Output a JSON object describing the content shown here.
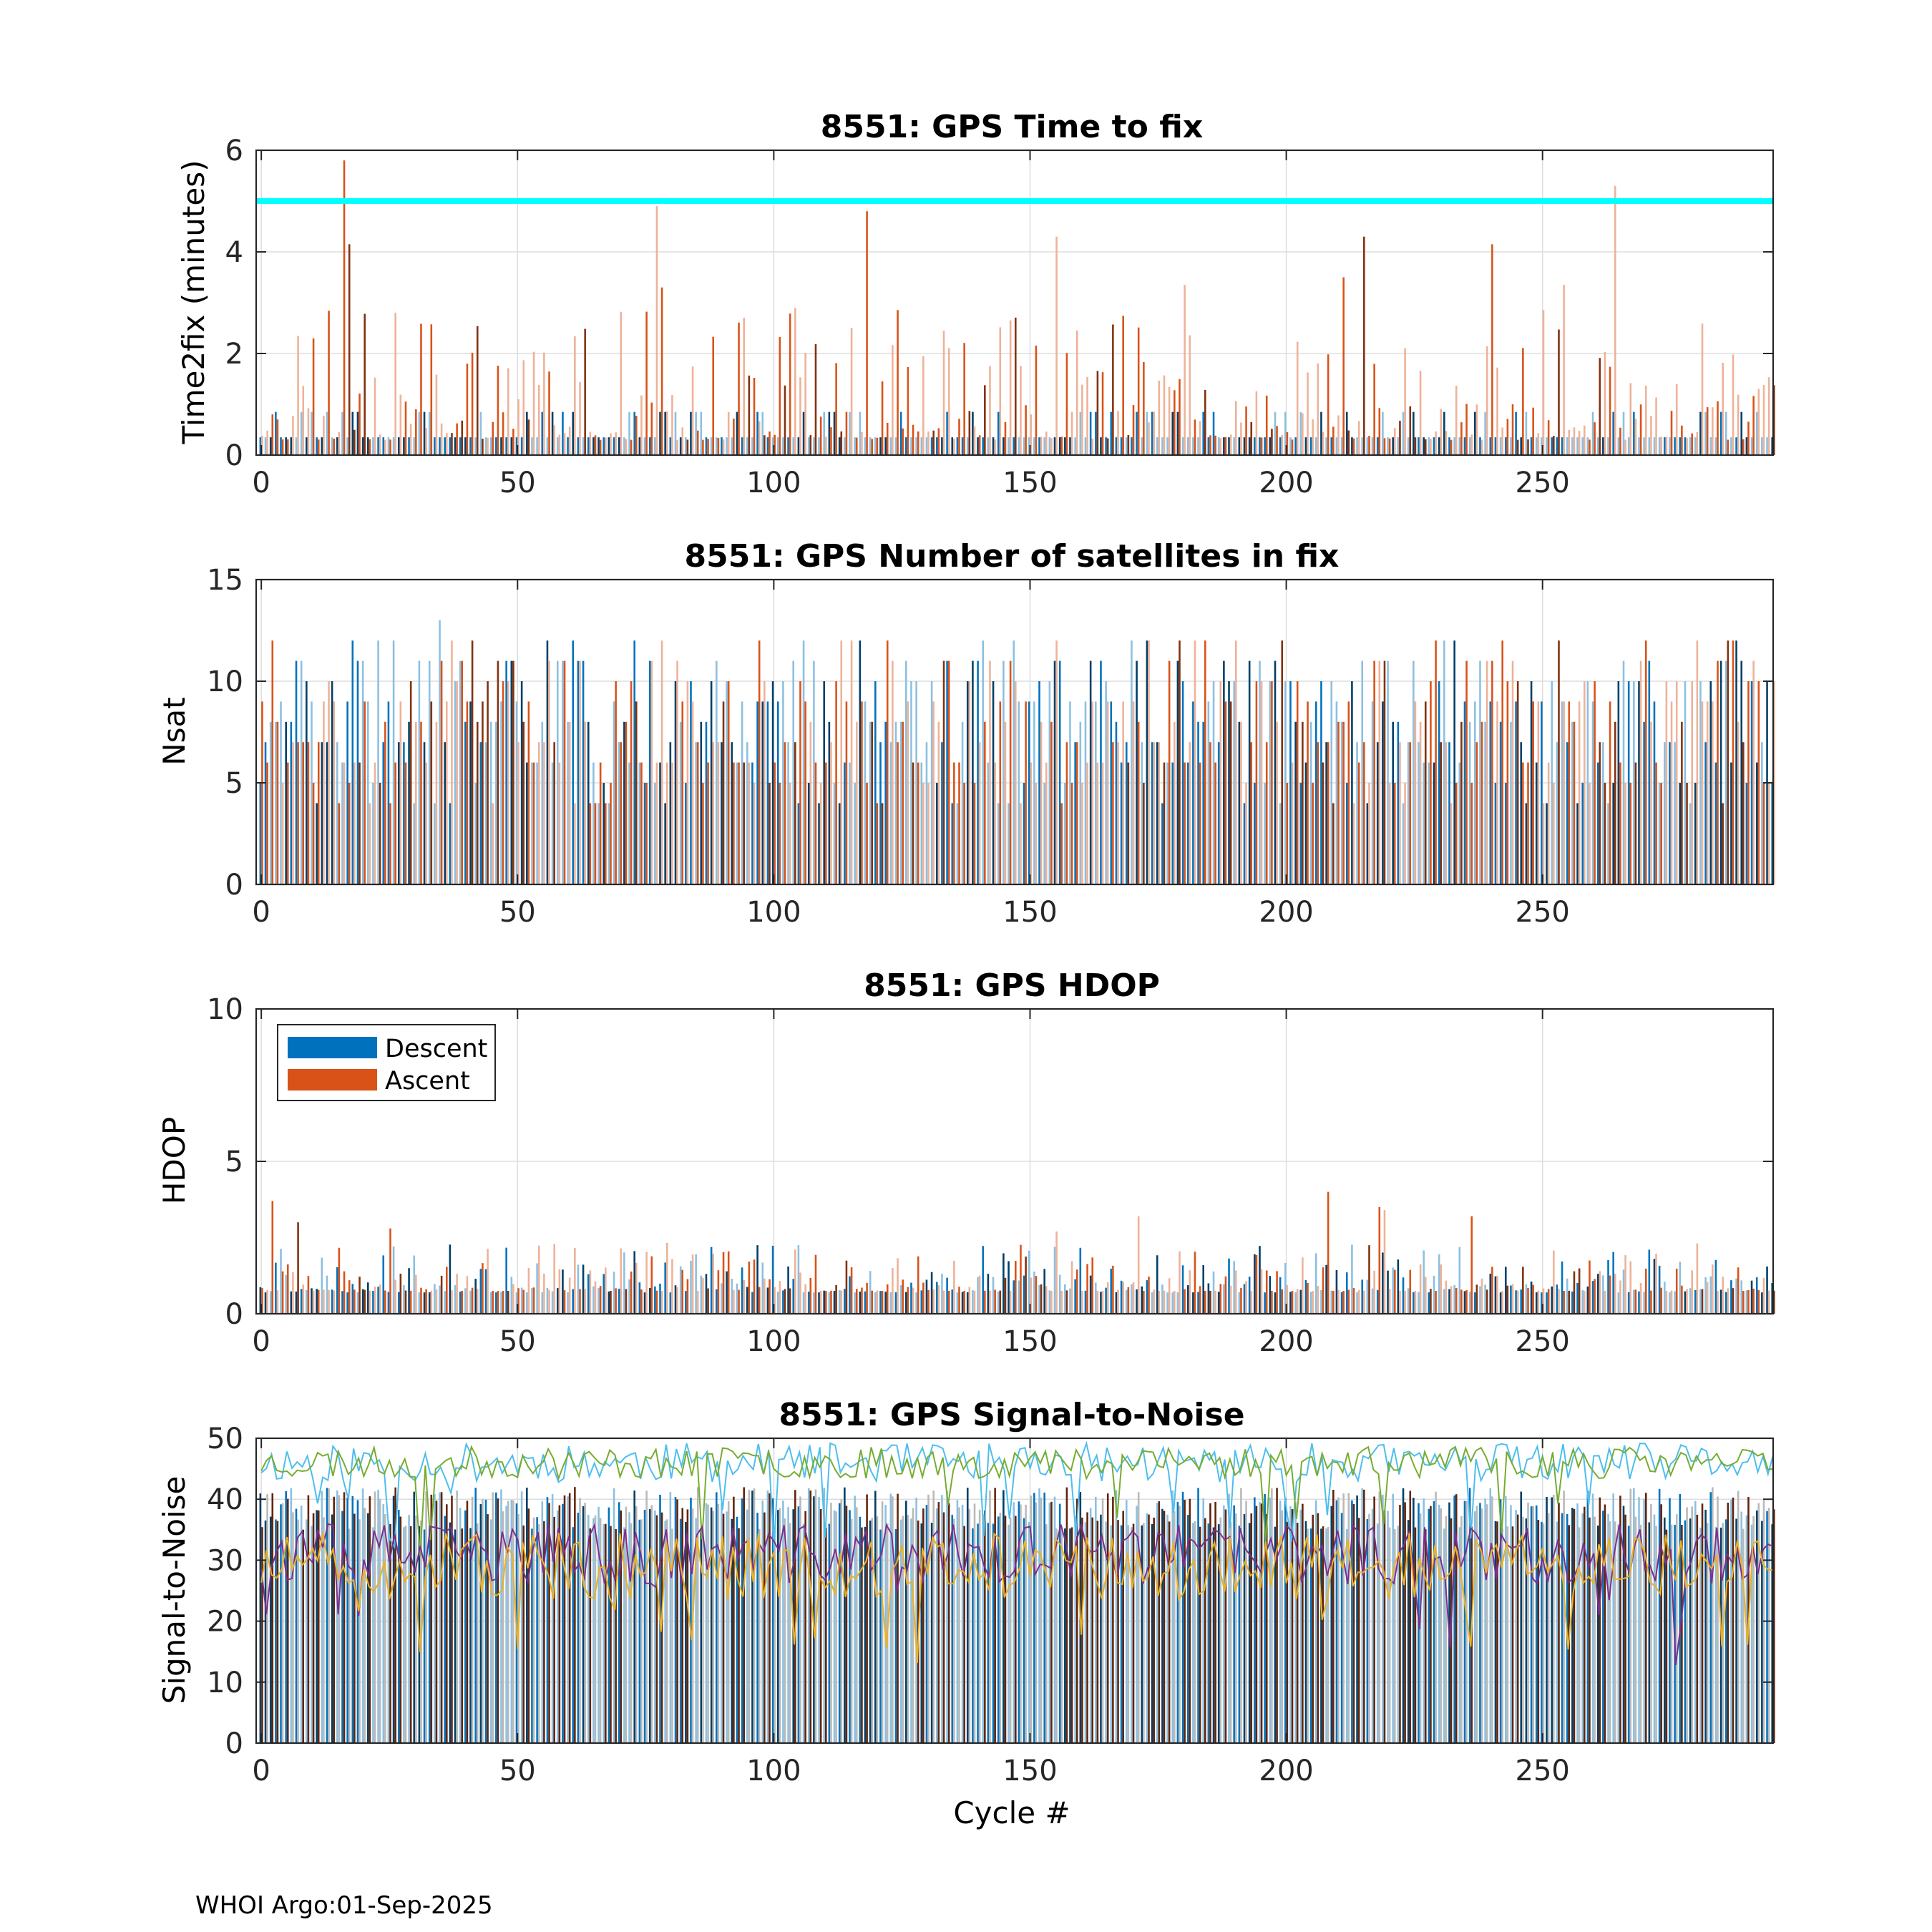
{
  "figure": {
    "footer": "WHOI Argo:01-Sep-2025"
  },
  "colors": {
    "descent": "#0072BD",
    "ascent": "#D95319",
    "threshold": "#00FFFF",
    "snr_lines": [
      "#4DBEEE",
      "#77AC30",
      "#7E2F8E",
      "#EDB120"
    ],
    "grid": "#DDDDDD"
  },
  "chart_data": [
    {
      "id": "time2fix",
      "type": "bar",
      "title": "8551: GPS Time to fix",
      "xlabel": "",
      "ylabel": "Time2fix (minutes)",
      "xlim": [
        -1,
        295
      ],
      "ylim": [
        0,
        6
      ],
      "xticks": [
        0,
        50,
        100,
        150,
        200,
        250
      ],
      "yticks": [
        0,
        2,
        4,
        6
      ],
      "grid": true,
      "reference_line": 5,
      "cycles": {
        "start": 0,
        "end": 295
      },
      "series": [
        {
          "name": "Descent",
          "note": "mostly ~0.35 min, occasionally ~0.85 min"
        },
        {
          "name": "Ascent",
          "note": "typically 0.3-2.5 min"
        }
      ],
      "ascent_peaks": [
        [
          16,
          5.8
        ],
        [
          17,
          4.15
        ],
        [
          77,
          4.9
        ],
        [
          78,
          3.3
        ],
        [
          118,
          4.8
        ],
        [
          155,
          4.3
        ],
        [
          215,
          4.3
        ],
        [
          240,
          4.15
        ],
        [
          264,
          5.3
        ],
        [
          180,
          3.35
        ],
        [
          254,
          3.35
        ],
        [
          211,
          3.5
        ]
      ]
    },
    {
      "id": "nsat",
      "type": "bar",
      "title": "8551: GPS Number of satellites in fix",
      "xlabel": "",
      "ylabel": "Nsat",
      "xlim": [
        -1,
        295
      ],
      "ylim": [
        0,
        15
      ],
      "xticks": [
        0,
        50,
        100,
        150,
        200,
        250
      ],
      "yticks": [
        0,
        5,
        10,
        15
      ],
      "grid": true,
      "series": [
        {
          "name": "Descent",
          "range": [
            4,
            13
          ]
        },
        {
          "name": "Ascent",
          "range": [
            4,
            12
          ]
        }
      ]
    },
    {
      "id": "hdop",
      "type": "bar",
      "title": "8551: GPS HDOP",
      "xlabel": "",
      "ylabel": "HDOP",
      "xlim": [
        -1,
        295
      ],
      "ylim": [
        0,
        10
      ],
      "xticks": [
        0,
        50,
        100,
        150,
        200,
        250
      ],
      "yticks": [
        0,
        5,
        10
      ],
      "grid": true,
      "legend": {
        "position": "top-left",
        "entries": [
          "Descent",
          "Ascent"
        ]
      },
      "series": [
        {
          "name": "Descent",
          "range": [
            0.7,
            2.3
          ]
        },
        {
          "name": "Ascent",
          "range": [
            0.7,
            4.0
          ]
        }
      ],
      "ascent_peaks": [
        [
          2,
          3.7
        ],
        [
          7,
          3.0
        ],
        [
          25,
          2.8
        ],
        [
          155,
          2.7
        ],
        [
          171,
          3.2
        ],
        [
          208,
          4.0
        ],
        [
          218,
          3.5
        ],
        [
          236,
          3.2
        ],
        [
          219,
          3.4
        ]
      ]
    },
    {
      "id": "snr",
      "type": "bar+line",
      "title": "8551: GPS Signal-to-Noise",
      "xlabel": "Cycle #",
      "ylabel": "Signal-to-Noise",
      "xlim": [
        -1,
        295
      ],
      "ylim": [
        0,
        50
      ],
      "xticks": [
        0,
        50,
        100,
        150,
        200,
        250
      ],
      "yticks": [
        0,
        10,
        20,
        30,
        40,
        50
      ],
      "grid": true,
      "series": [
        {
          "name": "SNR bars",
          "range": [
            35,
            42
          ]
        },
        {
          "name": "SNR line 1",
          "typical": 46
        },
        {
          "name": "SNR line 2",
          "typical": 46
        },
        {
          "name": "SNR line 3",
          "typical": 31
        },
        {
          "name": "SNR line 4",
          "typical": 29
        }
      ]
    }
  ]
}
